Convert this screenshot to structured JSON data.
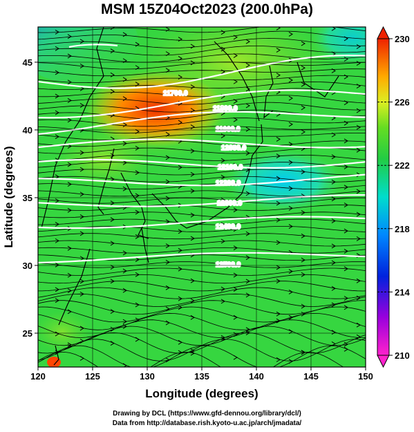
{
  "title": "MSM 15Z04Oct2023 (200.0hPa)",
  "x_axis": {
    "label": "Longitude (degrees)",
    "ticks": [
      "120",
      "125",
      "130",
      "135",
      "140",
      "145",
      "150"
    ],
    "range": [
      120,
      150
    ]
  },
  "y_axis": {
    "label": "Latitude  (degrees)",
    "ticks": [
      "25",
      "30",
      "35",
      "40",
      "45"
    ],
    "range": [
      22.5,
      47.6
    ]
  },
  "colorbar": {
    "ticks": [
      "230",
      "226",
      "222",
      "218",
      "214",
      "210"
    ],
    "range": [
      210,
      230
    ]
  },
  "contours": [
    {
      "label": "11700.0"
    },
    {
      "label": "11800.0"
    },
    {
      "label": "11900.0"
    },
    {
      "label": "12000.0"
    },
    {
      "label": "12100.0"
    },
    {
      "label": "12200.0"
    },
    {
      "label": "12300.0"
    },
    {
      "label": "12400.0"
    },
    {
      "label": "12500.0"
    }
  ],
  "credits": {
    "line1": "Drawing by DCL (https://www.gfd-dennou.org/library/dcl/)",
    "line2": "Data from http://database.rish.kyoto-u.ac.jp/arch/jmadata/"
  },
  "colors": {
    "contour": "#ffffff",
    "streamline": "#000000",
    "coast": "#000000"
  }
}
